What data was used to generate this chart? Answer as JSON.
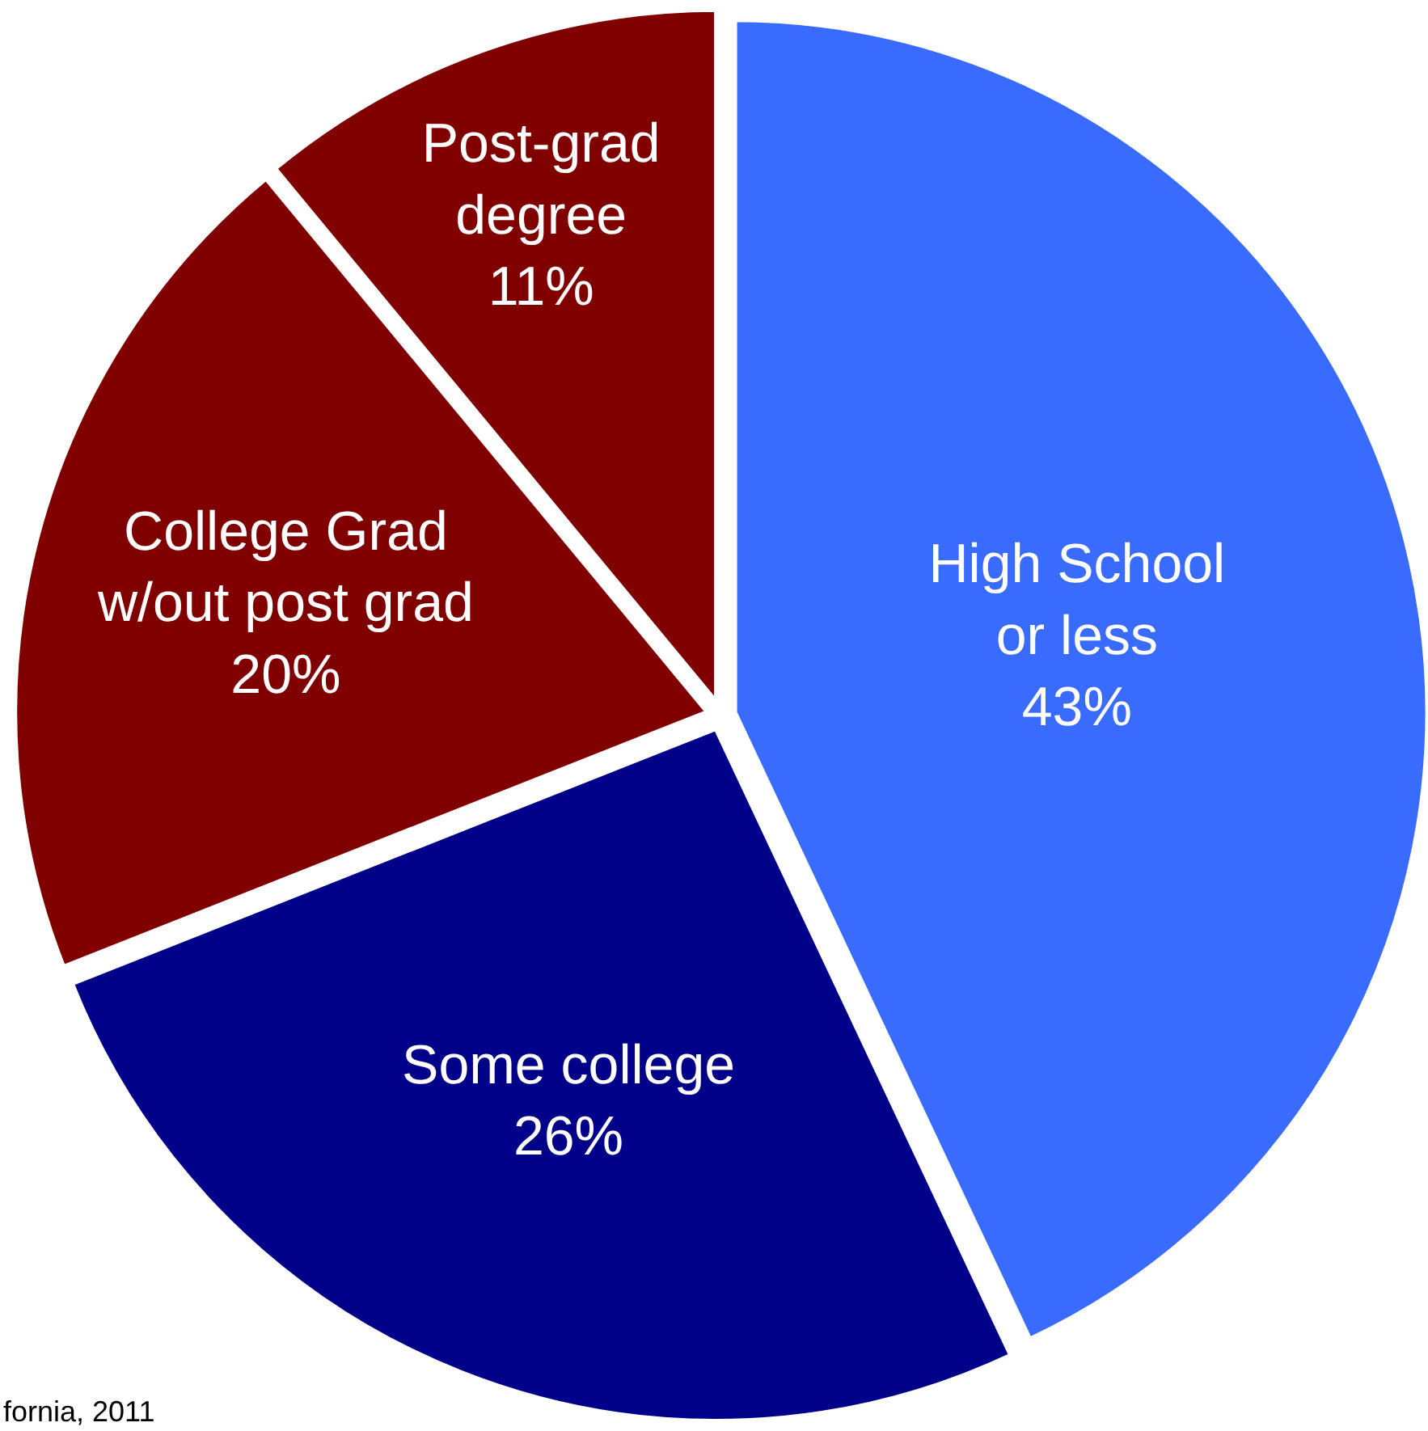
{
  "chart_data": {
    "type": "pie",
    "categories": [
      "High School\nor less",
      "Some college",
      "College Grad\nw/out post grad",
      "Post-grad\ndegree"
    ],
    "values": [
      43,
      26,
      20,
      11
    ],
    "value_labels": [
      "43%",
      "26%",
      "20%",
      "11%"
    ],
    "colors": [
      "#3a6bff",
      "#000088",
      "#800000",
      "#800000"
    ],
    "legend": false,
    "annotations": [
      "fornia, 2011"
    ]
  }
}
